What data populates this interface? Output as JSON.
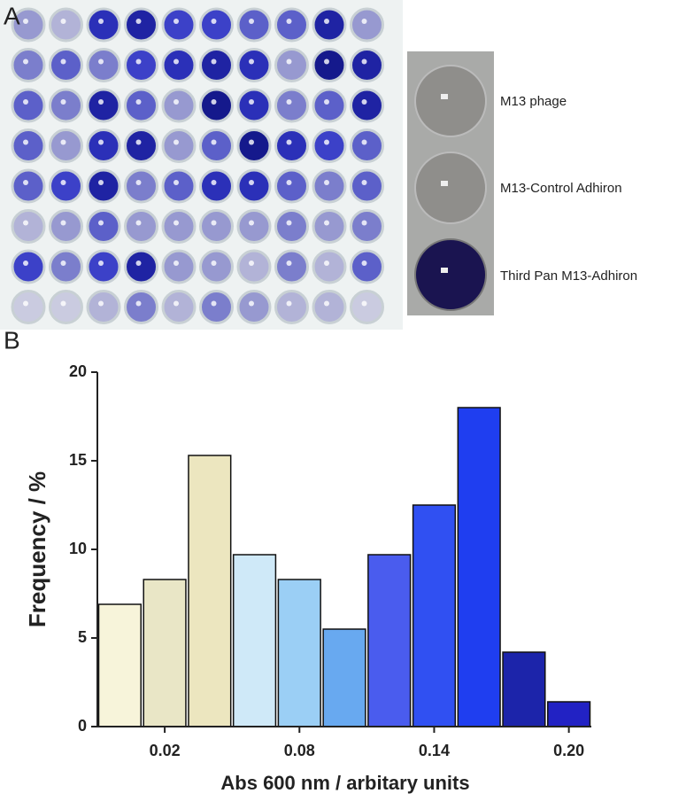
{
  "panel_a": {
    "label": "A",
    "wells": [
      "M13 phage",
      "M13-Control Adhiron",
      "Third  Pan M13-Adhiron"
    ]
  },
  "panel_b": {
    "label": "B"
  },
  "chart_data": {
    "type": "histogram",
    "x_label": "Abs 600 nm / arbitary units",
    "y_label": "Frequency / %",
    "bins": [
      -0.01,
      0.01,
      0.03,
      0.05,
      0.07,
      0.09,
      0.11,
      0.13,
      0.15,
      0.17,
      0.19,
      0.21
    ],
    "values": [
      6.9,
      8.3,
      15.3,
      9.7,
      8.3,
      5.5,
      9.7,
      12.5,
      18.0,
      4.2,
      1.4
    ],
    "colors": [
      "#f7f4da",
      "#e9e6c6",
      "#ece6bf",
      "#cfe9f8",
      "#9bcff5",
      "#68a9f0",
      "#4a5cee",
      "#3050f2",
      "#1f3ef0",
      "#1c24aa",
      "#2222c4"
    ],
    "xlim": [
      -0.01,
      0.21
    ],
    "ylim": [
      0,
      20
    ],
    "xticks": [
      0.02,
      0.08,
      0.14,
      {
        "value": 0.2,
        "label": "0.20"
      }
    ],
    "yticks": [
      0,
      5,
      10,
      15,
      20
    ]
  }
}
